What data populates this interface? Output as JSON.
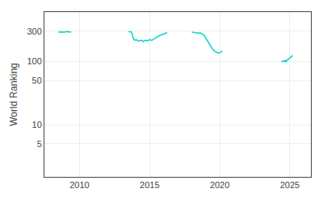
{
  "chart_data": {
    "type": "line",
    "ylabel": "World Ranking",
    "x": [
      2008.5,
      2008.7,
      2008.9,
      2009.1,
      2009.4,
      null,
      2013.5,
      2013.7,
      2013.85,
      2013.95,
      2014.05,
      2014.2,
      2014.4,
      2014.55,
      2014.7,
      2014.85,
      2015.0,
      2015.15,
      2015.3,
      2015.5,
      2015.7,
      2015.9,
      2016.1,
      2016.25,
      null,
      2018.0,
      2018.15,
      2018.3,
      2018.45,
      2018.6,
      2018.75,
      2018.9,
      2019.05,
      2019.2,
      2019.35,
      2019.5,
      2019.65,
      2019.8,
      2019.95,
      2020.1,
      2020.2,
      null,
      2024.4,
      2024.5,
      2024.6,
      2024.65,
      2024.7,
      2024.75,
      2024.8,
      2024.9,
      2025.0,
      2025.1,
      2025.2
    ],
    "values": [
      288,
      292,
      288,
      295,
      290,
      null,
      295,
      290,
      230,
      215,
      220,
      210,
      215,
      205,
      215,
      210,
      220,
      215,
      225,
      240,
      255,
      265,
      275,
      285,
      null,
      290,
      285,
      280,
      278,
      282,
      272,
      255,
      225,
      195,
      170,
      155,
      145,
      138,
      135,
      140,
      145,
      null,
      98,
      100,
      102,
      98,
      104,
      100,
      105,
      108,
      112,
      118,
      125
    ],
    "color": "#00d4c8",
    "log": "y",
    "xlim": [
      2007.5,
      2026.5
    ],
    "ylim": [
      1.5,
      600
    ],
    "xticks": [
      2010,
      2015,
      2020,
      2025
    ],
    "yticks": [
      5,
      10,
      50,
      100,
      300
    ],
    "grid": true
  }
}
